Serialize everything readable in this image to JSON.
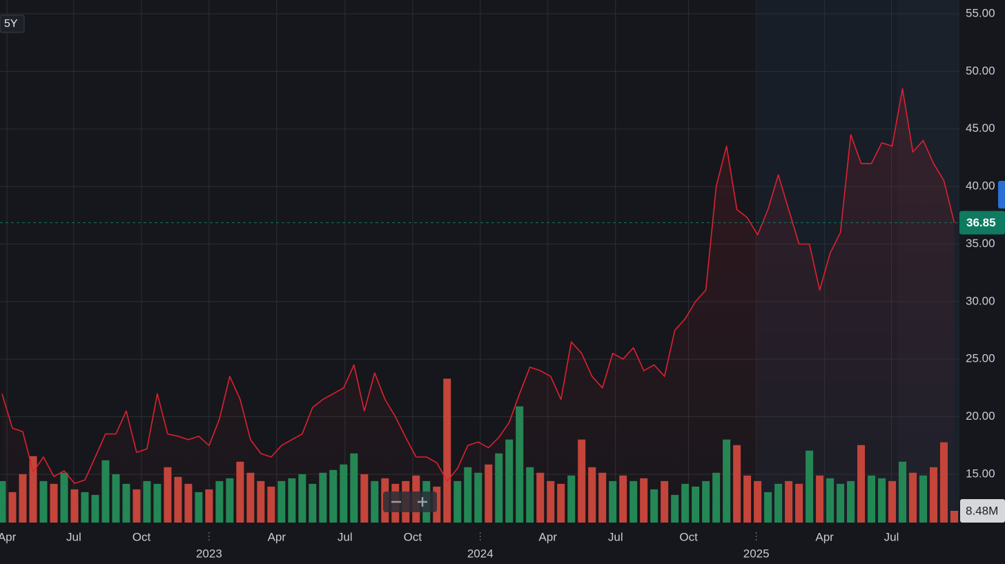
{
  "controls": {
    "range": "5Y"
  },
  "chart_data": {
    "type": "line",
    "xlim": [
      -0.2,
      92.5
    ],
    "ylim": [
      10.8,
      56.2
    ],
    "y2lim": [
      0,
      377.6
    ],
    "grid": true,
    "xticks": [
      {
        "value": 0.47,
        "label": "Apr"
      },
      {
        "value": 6.93,
        "label": "Jul"
      },
      {
        "value": 13.47,
        "label": "Oct"
      },
      {
        "value": 20.0,
        "label": "2023"
      },
      {
        "value": 26.53,
        "label": "Apr"
      },
      {
        "value": 33.13,
        "label": "Jul"
      },
      {
        "value": 39.67,
        "label": "Oct"
      },
      {
        "value": 46.2,
        "label": "2024"
      },
      {
        "value": 52.73,
        "label": "Apr"
      },
      {
        "value": 59.27,
        "label": "Jul"
      },
      {
        "value": 66.33,
        "label": "Oct"
      },
      {
        "value": 72.87,
        "label": "2025"
      },
      {
        "value": 79.47,
        "label": "Apr"
      },
      {
        "value": 85.93,
        "label": "Jul"
      }
    ],
    "yticks": [
      {
        "value": 15,
        "label": "15.00"
      },
      {
        "value": 20,
        "label": "20.00"
      },
      {
        "value": 25,
        "label": "25.00"
      },
      {
        "value": 30,
        "label": "30.00"
      },
      {
        "value": 35,
        "label": "35.00"
      },
      {
        "value": 40,
        "label": "40.00"
      },
      {
        "value": 45,
        "label": "45.00"
      },
      {
        "value": 50,
        "label": "50.00"
      },
      {
        "value": 55,
        "label": "55.00"
      }
    ],
    "series": [
      {
        "type": "line",
        "color": "#e0212f",
        "last_color": "#0f7a5f",
        "values": [
          22.0,
          19.0,
          18.7,
          15.2,
          16.5,
          14.8,
          15.3,
          14.2,
          14.5,
          16.5,
          18.5,
          18.5,
          20.5,
          16.9,
          17.2,
          22.0,
          18.5,
          18.3,
          18.0,
          18.3,
          17.5,
          19.8,
          23.5,
          21.5,
          18.0,
          16.8,
          16.5,
          17.5,
          18.0,
          18.5,
          20.8,
          21.5,
          22.0,
          22.5,
          24.5,
          20.5,
          23.8,
          21.5,
          20.0,
          18.2,
          16.5,
          16.5,
          16.0,
          14.4,
          15.5,
          17.5,
          17.8,
          17.3,
          18.2,
          19.5,
          22.0,
          24.3,
          24.0,
          23.5,
          21.5,
          26.5,
          25.5,
          23.5,
          22.5,
          25.5,
          25.0,
          26.0,
          24.0,
          24.5,
          23.5,
          27.5,
          28.5,
          30.0,
          31.0,
          40.0,
          43.5,
          38.0,
          37.3,
          35.8,
          38.0,
          41.0,
          38.0,
          35.0,
          35.0,
          31.0,
          34.2,
          36.0,
          44.5,
          42.0,
          42.0,
          43.8,
          43.5,
          48.5,
          43.0,
          44.0,
          42.0,
          40.5,
          36.85
        ]
      },
      {
        "type": "bar",
        "axis": "y2",
        "up_color": "#1f8a56",
        "down_color": "#c4463b",
        "last_label": "8.48M",
        "values": [
          30,
          22,
          35,
          48,
          30,
          28,
          36,
          24,
          22,
          20,
          45,
          35,
          28,
          24,
          30,
          28,
          40,
          33,
          28,
          22,
          24,
          30,
          32,
          44,
          36,
          30,
          26,
          30,
          32,
          35,
          28,
          36,
          38,
          42,
          50,
          35,
          30,
          32,
          28,
          30,
          34,
          30,
          26,
          104,
          30,
          40,
          36,
          42,
          50,
          60,
          84,
          40,
          36,
          30,
          28,
          34,
          60,
          40,
          36,
          30,
          34,
          30,
          32,
          24,
          30,
          20,
          28,
          26,
          30,
          36,
          60,
          56,
          34,
          30,
          22,
          28,
          30,
          28,
          52,
          34,
          32,
          28,
          30,
          56,
          34,
          32,
          30,
          44,
          36,
          34,
          40,
          58,
          8.48
        ]
      }
    ]
  }
}
